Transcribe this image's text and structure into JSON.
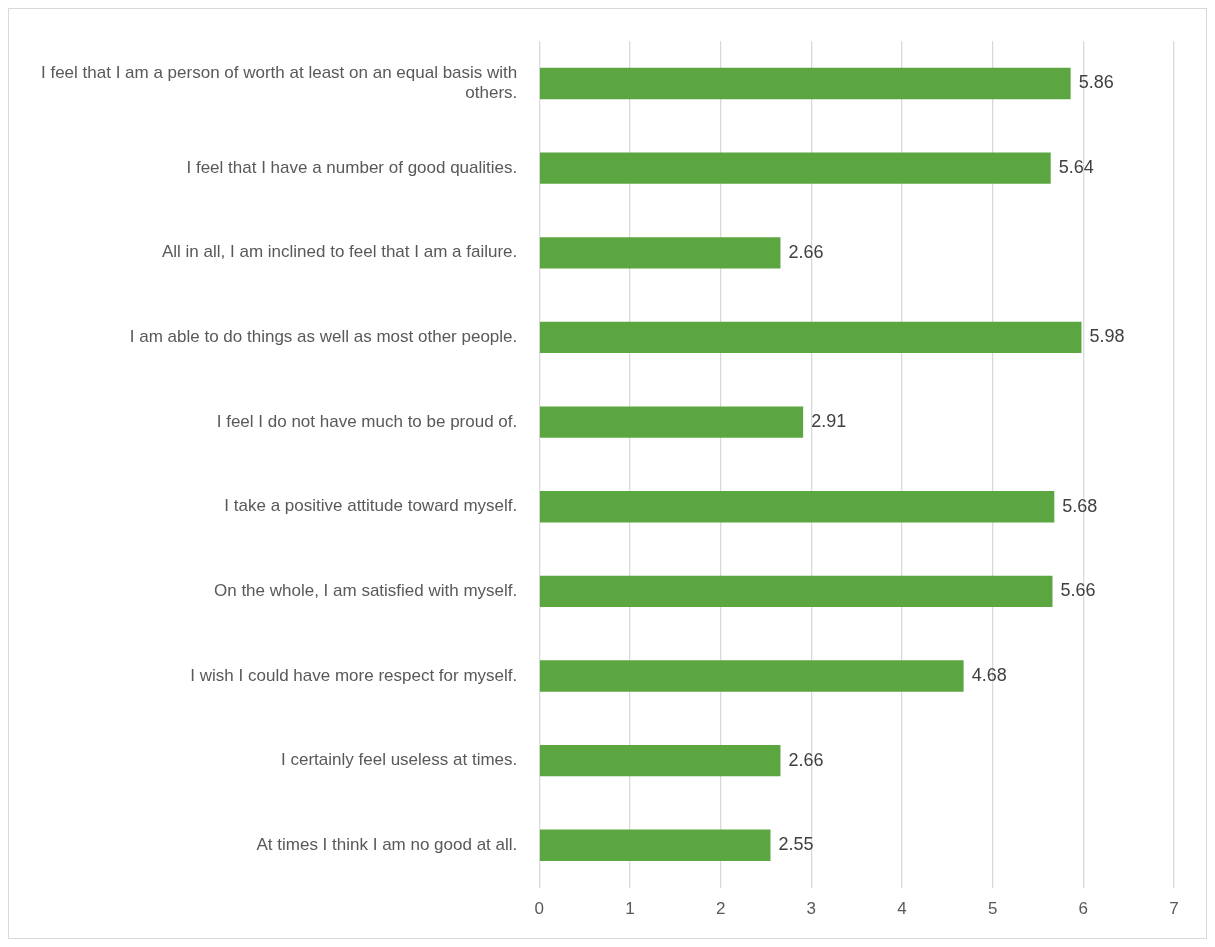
{
  "chart_data": {
    "type": "bar",
    "orientation": "horizontal",
    "categories": [
      "I feel that I am a person of worth at least on an equal basis with others.",
      "I feel that I have a number of good qualities.",
      "All in all, I am inclined to feel that I am a failure.",
      "I am able to do things as well as most other people.",
      "I feel I do not have much to be proud of.",
      "I take a positive attitude toward myself.",
      "On the whole, I am satisfied with myself.",
      "I wish I could have more respect for myself.",
      "I certainly feel useless at times.",
      "At times I think I am no good at all."
    ],
    "values": [
      5.86,
      5.64,
      2.66,
      5.98,
      2.91,
      5.68,
      5.66,
      4.68,
      2.66,
      2.55
    ],
    "color": "#5ba640",
    "xlim": [
      0,
      7
    ],
    "xticks": [
      0,
      1,
      2,
      3,
      4,
      5,
      6,
      7
    ],
    "grid": "x",
    "legend": false,
    "data_labels": true
  }
}
